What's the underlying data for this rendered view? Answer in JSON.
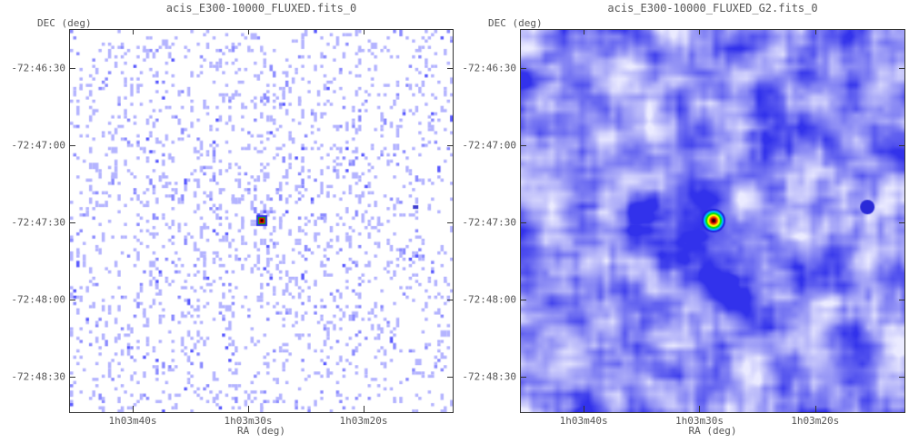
{
  "panels": [
    {
      "title": "acis_E300-10000_FLUXED.fits_0",
      "y_axis_label": "DEC (deg)",
      "x_axis_label": "RA (deg)",
      "y_ticks": [
        "-72:46:30",
        "-72:47:00",
        "-72:47:30",
        "-72:48:00",
        "-72:48:30"
      ],
      "x_ticks": [
        "1h03m40s",
        "1h03m30s",
        "1h03m20s"
      ],
      "style": "raw counts, sparse"
    },
    {
      "title": "acis_E300-10000_FLUXED_G2.fits_0",
      "y_axis_label": "DEC (deg)",
      "x_axis_label": "RA (deg)",
      "y_ticks": [
        "-72:46:30",
        "-72:47:00",
        "-72:47:30",
        "-72:48:00",
        "-72:48:30"
      ],
      "x_ticks": [
        "1h03m40s",
        "1h03m30s",
        "1h03m20s"
      ],
      "style": "gaussian smoothed"
    }
  ],
  "colors": {
    "low": "#ffffff",
    "mid": "#a0a0ff",
    "high": "#3030e8",
    "frame": "#333333"
  }
}
